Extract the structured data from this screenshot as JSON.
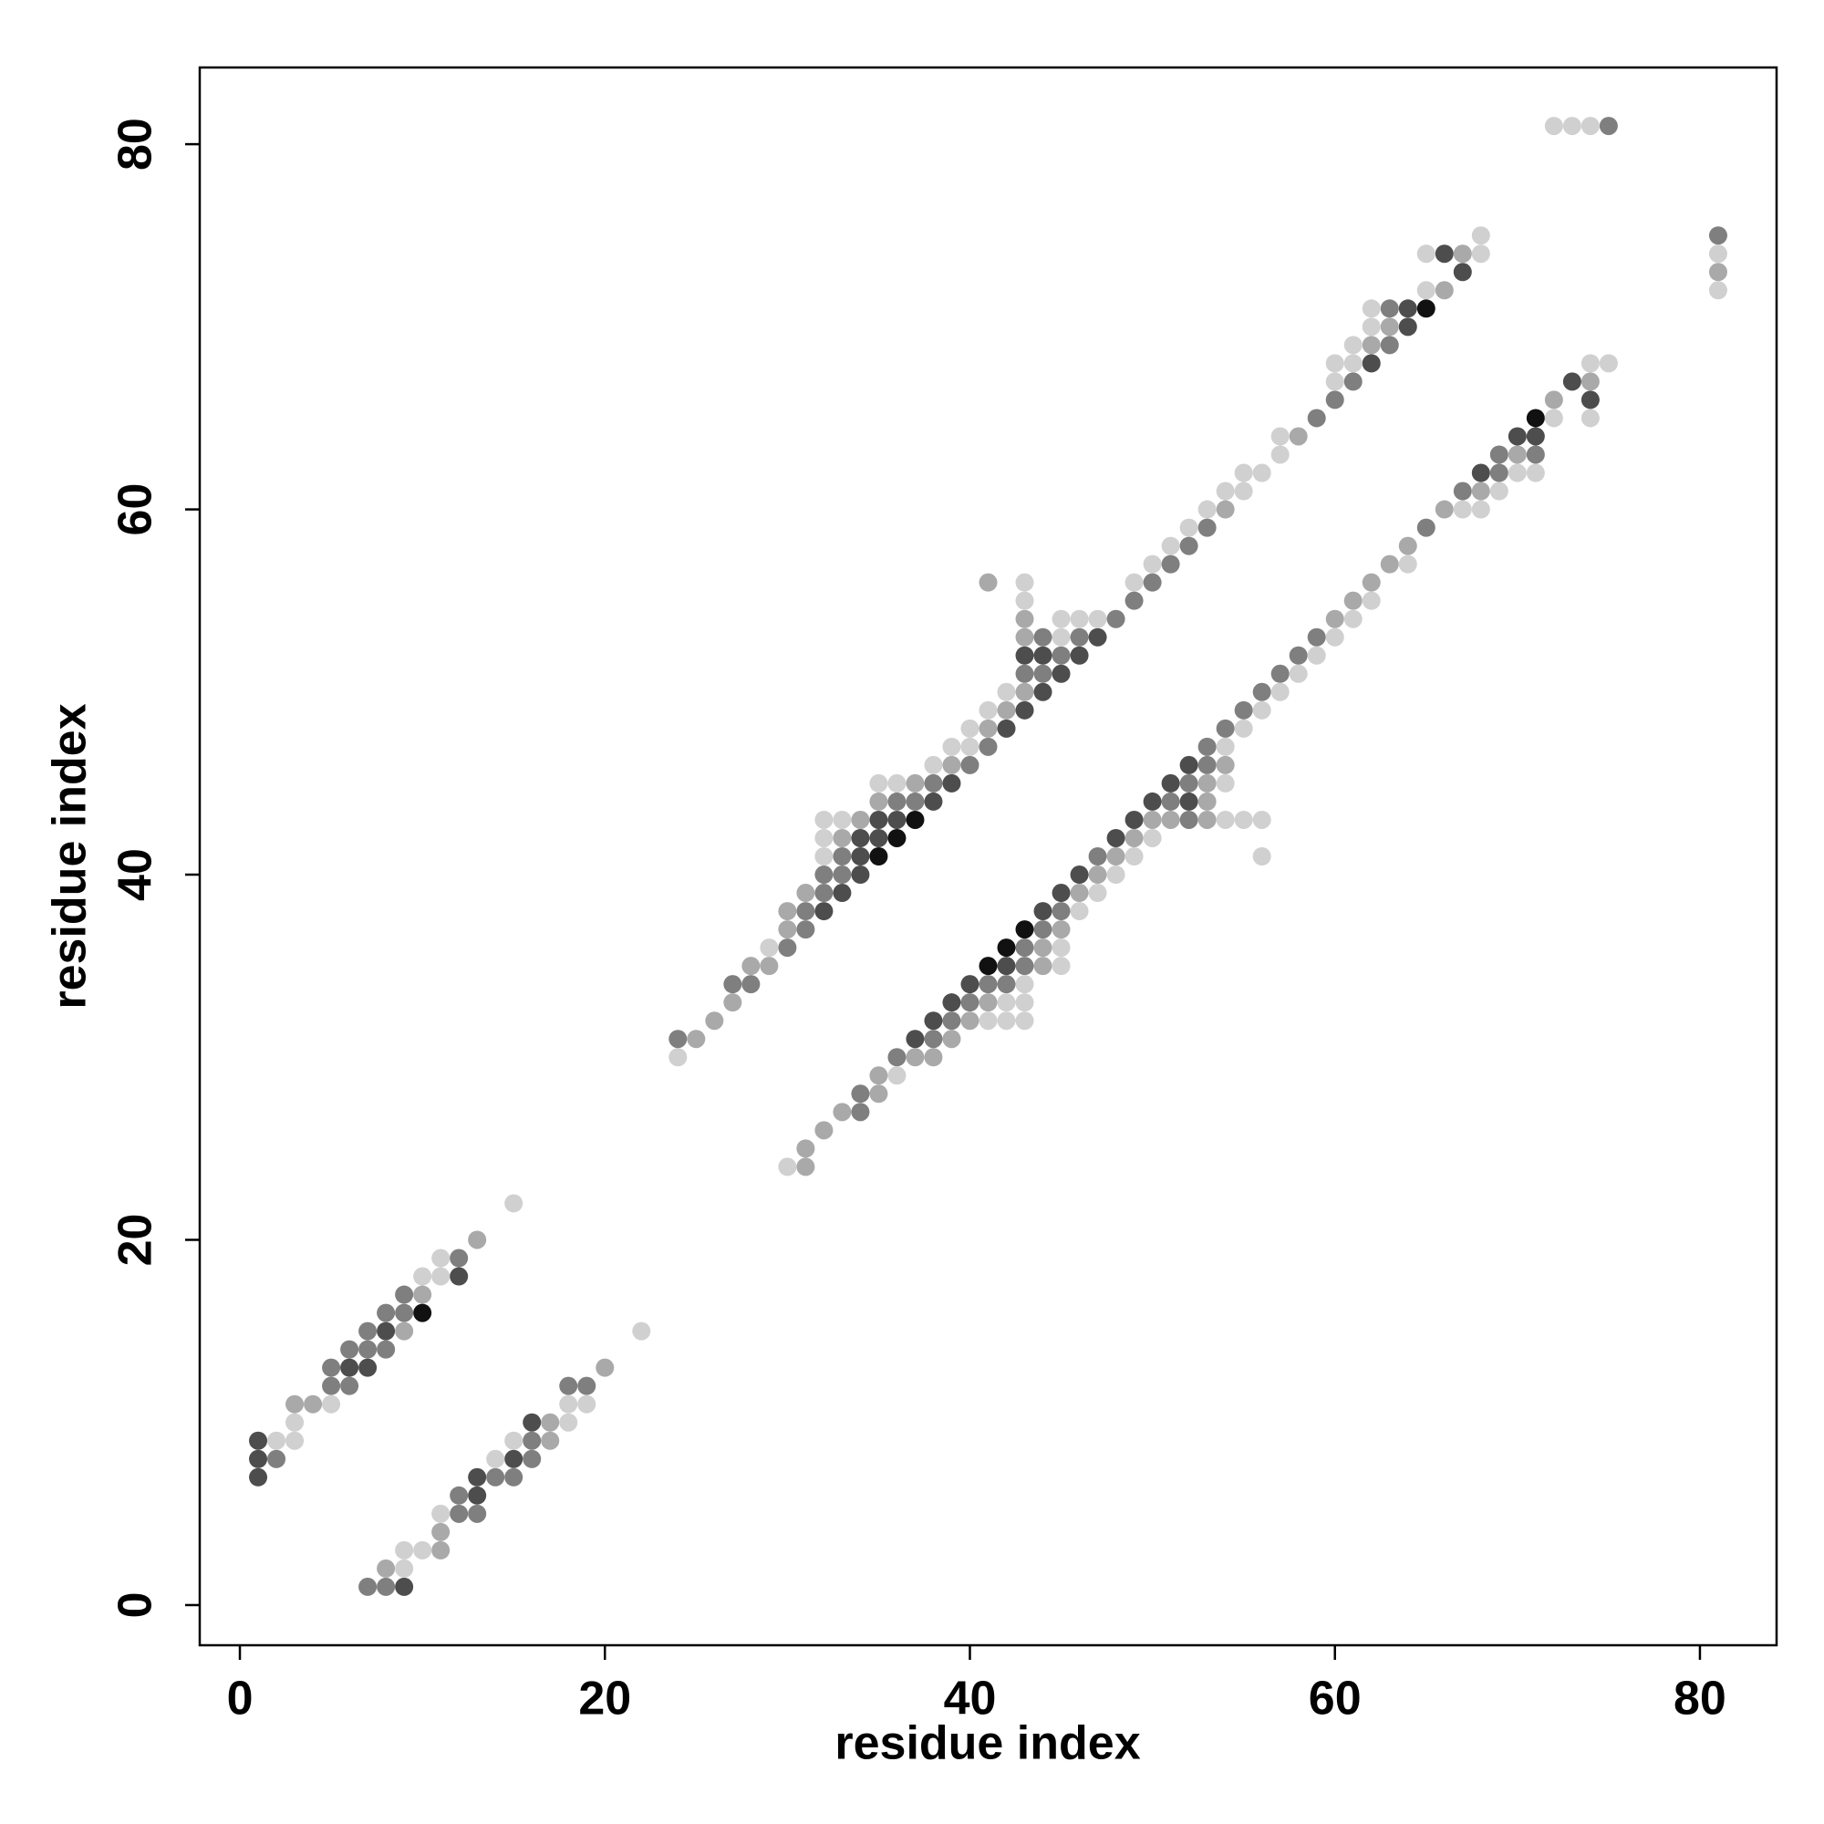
{
  "chart_data": {
    "type": "scatter",
    "xlabel": "residue index",
    "ylabel": "residue index",
    "xlim": [
      -2.2,
      84.2
    ],
    "ylim": [
      -2.2,
      84.2
    ],
    "xticks": [
      0,
      20,
      40,
      60,
      80
    ],
    "yticks": [
      0,
      20,
      40,
      60,
      80
    ],
    "series": [
      {
        "color": "#111111",
        "x": [
          10,
          35,
          36,
          37,
          65,
          41,
          42,
          43,
          71
        ],
        "y": [
          16,
          41,
          42,
          43,
          71,
          35,
          36,
          37,
          65
        ]
      },
      {
        "color": "#4d4d4d",
        "x": [
          1,
          1,
          1,
          6,
          7,
          8,
          12,
          9,
          13,
          13,
          15,
          16,
          32,
          33,
          34,
          34,
          34,
          35,
          35,
          36,
          38,
          39,
          42,
          43,
          44,
          45,
          43,
          44,
          46,
          47,
          62,
          64,
          64,
          67,
          66,
          37,
          38,
          39,
          40,
          42,
          44,
          45,
          46,
          48,
          49,
          50,
          52,
          51,
          52,
          68,
          70,
          71,
          74,
          73
        ],
        "y": [
          7,
          8,
          9,
          13,
          13,
          15,
          18,
          1,
          6,
          7,
          8,
          10,
          38,
          39,
          40,
          41,
          42,
          42,
          43,
          43,
          44,
          45,
          48,
          49,
          50,
          51,
          52,
          52,
          52,
          53,
          68,
          70,
          71,
          73,
          74,
          31,
          32,
          33,
          34,
          35,
          38,
          39,
          40,
          42,
          43,
          44,
          44,
          45,
          46,
          62,
          64,
          64,
          66,
          67
        ]
      },
      {
        "color": "#7f7f7f",
        "x": [
          2,
          5,
          6,
          5,
          6,
          7,
          8,
          7,
          8,
          9,
          9,
          12,
          7,
          8,
          12,
          13,
          12,
          14,
          15,
          16,
          16,
          18,
          19,
          24,
          27,
          28,
          30,
          31,
          31,
          32,
          32,
          33,
          33,
          36,
          37,
          38,
          40,
          41,
          43,
          44,
          45,
          44,
          46,
          48,
          49,
          50,
          51,
          52,
          53,
          59,
          60,
          61,
          63,
          63,
          75,
          81,
          34,
          34,
          36,
          38,
          39,
          40,
          41,
          42,
          43,
          43,
          44,
          45,
          47,
          52,
          51,
          52,
          53,
          53,
          54,
          55,
          56,
          57,
          58,
          59,
          65,
          67,
          69,
          69,
          71
        ],
        "y": [
          8,
          12,
          12,
          13,
          14,
          14,
          14,
          15,
          16,
          16,
          17,
          19,
          1,
          1,
          5,
          5,
          6,
          7,
          7,
          8,
          9,
          12,
          12,
          31,
          34,
          34,
          36,
          37,
          38,
          39,
          40,
          40,
          41,
          44,
          44,
          45,
          46,
          47,
          51,
          51,
          52,
          53,
          53,
          54,
          55,
          56,
          57,
          58,
          59,
          65,
          66,
          67,
          69,
          71,
          81,
          75,
          27,
          28,
          30,
          31,
          32,
          33,
          34,
          34,
          35,
          36,
          37,
          38,
          41,
          43,
          44,
          45,
          46,
          47,
          48,
          49,
          50,
          51,
          52,
          53,
          59,
          61,
          62,
          63,
          63
        ]
      },
      {
        "color": "#a9a9a9",
        "x": [
          3,
          4,
          9,
          10,
          13,
          8,
          11,
          11,
          17,
          17,
          20,
          25,
          26,
          27,
          28,
          29,
          30,
          30,
          31,
          33,
          34,
          35,
          37,
          39,
          41,
          42,
          43,
          43,
          43,
          41,
          54,
          58,
          62,
          63,
          66,
          67,
          81,
          31,
          31,
          32,
          33,
          35,
          35,
          37,
          38,
          39,
          40,
          41,
          44,
          44,
          45,
          46,
          47,
          48,
          49,
          50,
          51,
          53,
          53,
          53,
          54,
          60,
          61,
          62,
          63,
          64,
          66,
          68,
          70,
          72,
          74
        ],
        "y": [
          11,
          11,
          15,
          17,
          20,
          2,
          3,
          4,
          9,
          10,
          13,
          31,
          32,
          33,
          35,
          35,
          37,
          38,
          39,
          42,
          43,
          44,
          45,
          46,
          48,
          49,
          50,
          53,
          54,
          56,
          60,
          64,
          69,
          70,
          72,
          74,
          73,
          24,
          25,
          26,
          27,
          28,
          29,
          30,
          30,
          31,
          32,
          33,
          35,
          36,
          37,
          39,
          40,
          41,
          42,
          43,
          43,
          43,
          44,
          45,
          46,
          54,
          55,
          56,
          57,
          58,
          60,
          61,
          63,
          66,
          67
        ]
      },
      {
        "color": "#d0d0d0",
        "x": [
          2,
          3,
          3,
          5,
          10,
          11,
          11,
          15,
          9,
          9,
          10,
          11,
          14,
          15,
          18,
          18,
          19,
          22,
          24,
          29,
          32,
          32,
          32,
          33,
          35,
          36,
          38,
          39,
          40,
          40,
          41,
          42,
          45,
          45,
          46,
          47,
          43,
          43,
          49,
          50,
          51,
          52,
          53,
          54,
          55,
          55,
          56,
          57,
          57,
          60,
          60,
          61,
          61,
          62,
          62,
          65,
          65,
          68,
          68,
          72,
          73,
          74,
          81,
          81,
          30,
          36,
          41,
          42,
          43,
          42,
          43,
          43,
          45,
          45,
          46,
          47,
          48,
          49,
          50,
          54,
          55,
          56,
          54,
          54,
          55,
          56,
          57,
          58,
          59,
          60,
          61,
          62,
          64,
          67,
          68,
          69,
          70,
          71,
          72,
          74,
          74,
          75,
          56
        ],
        "y": [
          9,
          9,
          10,
          11,
          18,
          18,
          19,
          22,
          2,
          3,
          3,
          5,
          8,
          9,
          10,
          11,
          11,
          15,
          30,
          36,
          41,
          42,
          43,
          43,
          45,
          45,
          46,
          47,
          47,
          48,
          49,
          50,
          53,
          54,
          54,
          54,
          55,
          56,
          56,
          57,
          58,
          59,
          60,
          61,
          61,
          62,
          62,
          63,
          64,
          67,
          68,
          68,
          69,
          70,
          71,
          72,
          74,
          74,
          75,
          81,
          81,
          81,
          72,
          74,
          24,
          29,
          32,
          32,
          32,
          33,
          33,
          34,
          35,
          36,
          38,
          39,
          40,
          41,
          42,
          43,
          43,
          43,
          45,
          47,
          48,
          49,
          50,
          51,
          52,
          53,
          54,
          55,
          57,
          60,
          60,
          61,
          62,
          62,
          65,
          65,
          68,
          68,
          41
        ]
      }
    ]
  }
}
